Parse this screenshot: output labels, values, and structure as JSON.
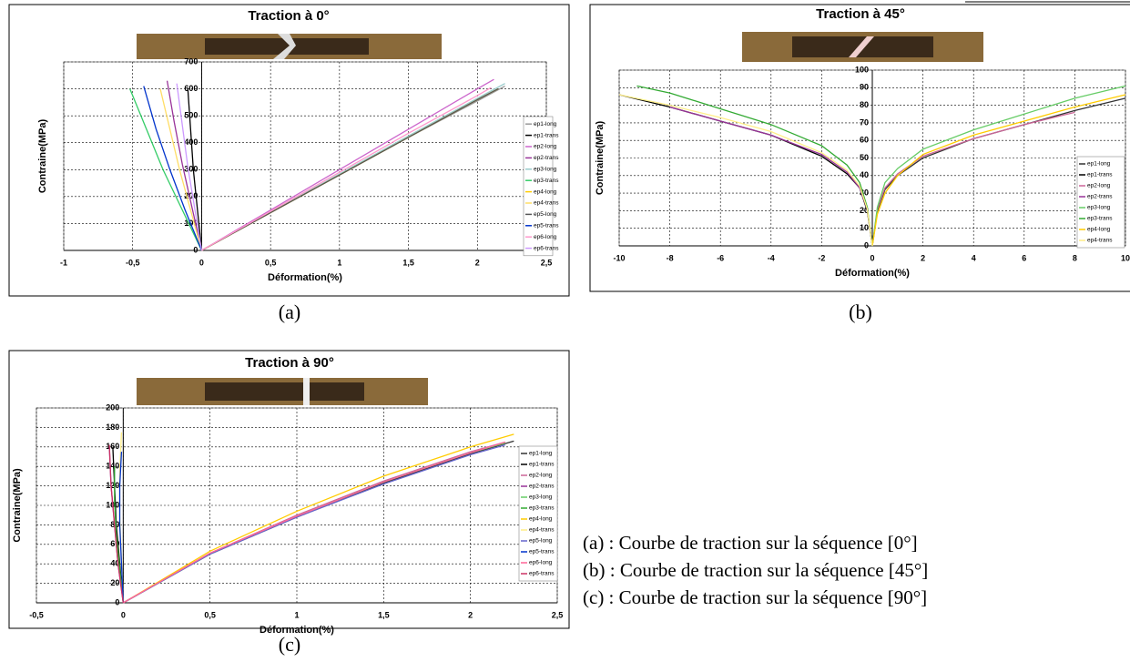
{
  "chart_data": [
    {
      "type": "line",
      "title": "Traction à 0°",
      "caption": "(a)",
      "x_label": "Déformation(%)",
      "y_label": "Contraine(MPa)",
      "xlim": [
        -1,
        2.5
      ],
      "ylim": [
        0,
        700
      ],
      "xticks": [
        -1,
        {
          "value": -0.5,
          "label": "-0,5"
        },
        0,
        {
          "value": 0.5,
          "label": "0,5"
        },
        1,
        {
          "value": 1.5,
          "label": "1,5"
        },
        2,
        {
          "value": 2.5,
          "label": "2,5"
        }
      ],
      "yticks": [
        0,
        100,
        200,
        300,
        400,
        500,
        600,
        700
      ],
      "grid": true,
      "series": [
        {
          "name": "ep1-long",
          "color": "#999999",
          "x": [
            0,
            0.5,
            1,
            1.5,
            2,
            2.2
          ],
          "values": [
            0,
            140,
            280,
            420,
            555,
            610
          ]
        },
        {
          "name": "ep1-trans",
          "color": "#000000",
          "x": [
            0,
            -0.03,
            -0.06,
            -0.08,
            -0.1
          ],
          "values": [
            0,
            150,
            300,
            450,
            600
          ]
        },
        {
          "name": "ep2-long",
          "color": "#cc66cc",
          "x": [
            0,
            0.5,
            1,
            1.5,
            2,
            2.12
          ],
          "values": [
            0,
            150,
            300,
            450,
            600,
            635
          ]
        },
        {
          "name": "ep2-trans",
          "color": "#993399",
          "x": [
            0,
            -0.07,
            -0.14,
            -0.2,
            -0.25
          ],
          "values": [
            0,
            160,
            320,
            480,
            630
          ]
        },
        {
          "name": "ep3-long",
          "color": "#99cccc",
          "x": [
            0,
            0.5,
            1,
            1.5,
            2,
            2.2
          ],
          "values": [
            0,
            142,
            284,
            425,
            565,
            620
          ]
        },
        {
          "name": "ep3-trans",
          "color": "#33cc66",
          "x": [
            0,
            -0.14,
            -0.28,
            -0.4,
            -0.52
          ],
          "values": [
            0,
            150,
            300,
            450,
            600
          ]
        },
        {
          "name": "ep4-long",
          "color": "#ffcc00",
          "x": [
            0,
            0.5,
            1,
            1.5,
            2,
            2.15
          ],
          "values": [
            0,
            140,
            280,
            420,
            560,
            600
          ]
        },
        {
          "name": "ep4-trans",
          "color": "#ffdd66",
          "x": [
            0,
            -0.08,
            -0.16,
            -0.23,
            -0.3
          ],
          "values": [
            0,
            150,
            300,
            450,
            600
          ]
        },
        {
          "name": "ep5-long",
          "color": "#555555",
          "x": [
            0,
            0.5,
            1,
            1.5,
            2,
            2.15
          ],
          "values": [
            0,
            140,
            280,
            420,
            560,
            600
          ]
        },
        {
          "name": "ep5-trans",
          "color": "#0033cc",
          "x": [
            0,
            -0.12,
            -0.23,
            -0.33,
            -0.42
          ],
          "values": [
            0,
            150,
            300,
            450,
            610
          ]
        },
        {
          "name": "ep6-long",
          "color": "#ff99cc",
          "x": [
            0,
            0.5,
            1,
            1.5,
            2,
            2.1
          ],
          "values": [
            0,
            145,
            290,
            435,
            575,
            605
          ]
        },
        {
          "name": "ep6-trans",
          "color": "#cc99ff",
          "x": [
            0,
            -0.05,
            -0.1,
            -0.14,
            -0.18
          ],
          "values": [
            0,
            155,
            310,
            465,
            620
          ]
        }
      ]
    },
    {
      "type": "line",
      "title": "Traction à 45°",
      "caption": "(b)",
      "x_label": "Déformation(%)",
      "y_label": "Contraine(MPa)",
      "xlim": [
        -10,
        10
      ],
      "ylim": [
        0,
        100
      ],
      "xticks": [
        -10,
        -8,
        -6,
        -4,
        -2,
        0,
        2,
        4,
        6,
        8,
        10
      ],
      "yticks": [
        0,
        10,
        20,
        30,
        40,
        50,
        60,
        70,
        80,
        90,
        100
      ],
      "grid": true,
      "series": [
        {
          "name": "ep1-long",
          "color": "#333333",
          "x": [
            0,
            0.2,
            0.5,
            1,
            2,
            4,
            6,
            8,
            10
          ],
          "values": [
            0,
            20,
            32,
            40,
            50,
            61,
            69,
            77,
            84
          ]
        },
        {
          "name": "ep1-trans",
          "color": "#000000",
          "x": [
            0,
            -0.2,
            -0.5,
            -1,
            -2,
            -4,
            -6,
            -8,
            -10
          ],
          "values": [
            0,
            20,
            33,
            41,
            51,
            63,
            71,
            79,
            86
          ]
        },
        {
          "name": "ep2-long",
          "color": "#cc6699",
          "x": [
            0,
            0.2,
            0.5,
            1,
            2,
            4,
            6,
            8
          ],
          "values": [
            0,
            21,
            33,
            41,
            51,
            61,
            69,
            76
          ]
        },
        {
          "name": "ep2-trans",
          "color": "#993399",
          "x": [
            0,
            -0.2,
            -0.5,
            -1,
            -2,
            -4,
            -6,
            -8
          ],
          "values": [
            0,
            21,
            33,
            42,
            52,
            63,
            71,
            79
          ]
        },
        {
          "name": "ep3-long",
          "color": "#66cc66",
          "x": [
            0,
            0.2,
            0.5,
            1,
            2,
            4,
            6,
            8,
            10
          ],
          "values": [
            0,
            22,
            36,
            44,
            55,
            66,
            75,
            84,
            91
          ]
        },
        {
          "name": "ep3-trans",
          "color": "#33aa33",
          "x": [
            0,
            -0.2,
            -0.5,
            -1,
            -2,
            -4,
            -6,
            -8,
            -9.3
          ],
          "values": [
            0,
            22,
            36,
            46,
            57,
            69,
            78,
            87,
            91
          ]
        },
        {
          "name": "ep4-long",
          "color": "#ffcc00",
          "x": [
            0,
            0.2,
            0.5,
            1,
            2,
            4,
            6,
            8,
            10
          ],
          "values": [
            0,
            18,
            30,
            40,
            52,
            63,
            71,
            79,
            86
          ]
        },
        {
          "name": "ep4-trans",
          "color": "#ffee88",
          "x": [
            0,
            -0.2,
            -0.5,
            -1,
            -2,
            -4,
            -6,
            -8,
            -10
          ],
          "values": [
            0,
            21,
            34,
            43,
            53,
            65,
            73,
            80,
            86
          ]
        }
      ]
    },
    {
      "type": "line",
      "title": "Traction à 90°",
      "caption": "(c)",
      "x_label": "Déformation(%)",
      "y_label": "Contraine(MPa)",
      "xlim": [
        -0.5,
        2.5
      ],
      "ylim": [
        0,
        200
      ],
      "xticks": [
        {
          "value": -0.5,
          "label": "-0,5"
        },
        0,
        {
          "value": 0.5,
          "label": "0,5"
        },
        1,
        {
          "value": 1.5,
          "label": "1,5"
        },
        2,
        {
          "value": 2.5,
          "label": "2,5"
        }
      ],
      "yticks": [
        0,
        20,
        40,
        60,
        80,
        100,
        120,
        140,
        160,
        180,
        200
      ],
      "grid": true,
      "series": [
        {
          "name": "ep1-long",
          "color": "#333333",
          "x": [
            0,
            0.5,
            1,
            1.5,
            2,
            2.25
          ],
          "values": [
            0,
            50,
            88,
            123,
            153,
            166
          ]
        },
        {
          "name": "ep1-trans",
          "color": "#000000",
          "x": [
            0,
            -0.02,
            -0.04,
            -0.05,
            -0.06
          ],
          "values": [
            0,
            40,
            80,
            120,
            160
          ]
        },
        {
          "name": "ep2-long",
          "color": "#cc6699",
          "x": [
            0,
            0.5,
            1,
            1.5,
            2,
            2.2
          ],
          "values": [
            0,
            51,
            90,
            125,
            155,
            165
          ]
        },
        {
          "name": "ep2-trans",
          "color": "#993399",
          "x": [
            0,
            -0.03,
            -0.05,
            -0.07,
            -0.08
          ],
          "values": [
            0,
            40,
            80,
            120,
            160
          ]
        },
        {
          "name": "ep3-long",
          "color": "#66cc66",
          "x": [
            0,
            0.5,
            1,
            1.5,
            2,
            2.2
          ],
          "values": [
            0,
            50,
            89,
            124,
            154,
            164
          ]
        },
        {
          "name": "ep3-trans",
          "color": "#33aa33",
          "x": [
            0,
            -0.02,
            -0.04,
            -0.05,
            -0.05
          ],
          "values": [
            0,
            35,
            70,
            105,
            140
          ]
        },
        {
          "name": "ep4-long",
          "color": "#ffcc00",
          "x": [
            0,
            0.5,
            1,
            1.5,
            2,
            2.25
          ],
          "values": [
            0,
            53,
            94,
            130,
            160,
            173
          ]
        },
        {
          "name": "ep4-trans",
          "color": "#ffee88",
          "x": [
            0,
            -0.01,
            -0.02,
            -0.02,
            -0.01
          ],
          "values": [
            0,
            45,
            90,
            135,
            175
          ]
        },
        {
          "name": "ep5-long",
          "color": "#6666cc",
          "x": [
            0,
            0.5,
            1,
            1.5,
            2,
            2.2
          ],
          "values": [
            0,
            50,
            88,
            122,
            152,
            162
          ]
        },
        {
          "name": "ep5-trans",
          "color": "#0033cc",
          "x": [
            0,
            -0.01,
            -0.02,
            -0.02,
            -0.01
          ],
          "values": [
            0,
            40,
            80,
            120,
            155
          ]
        },
        {
          "name": "ep6-long",
          "color": "#ff6699",
          "x": [
            0,
            0.5,
            1,
            1.5,
            2,
            2.2
          ],
          "values": [
            0,
            51,
            89,
            124,
            154,
            165
          ]
        },
        {
          "name": "ep6-trans",
          "color": "#cc3366",
          "x": [
            0,
            -0.03,
            -0.05,
            -0.07,
            -0.08
          ],
          "values": [
            0,
            40,
            80,
            120,
            162
          ]
        }
      ]
    }
  ],
  "notes": [
    "(a) : Courbe de traction sur la séquence [0°]",
    "(b) : Courbe de traction sur la séquence [45°]",
    "(c) : Courbe de traction sur la séquence [90°]"
  ]
}
